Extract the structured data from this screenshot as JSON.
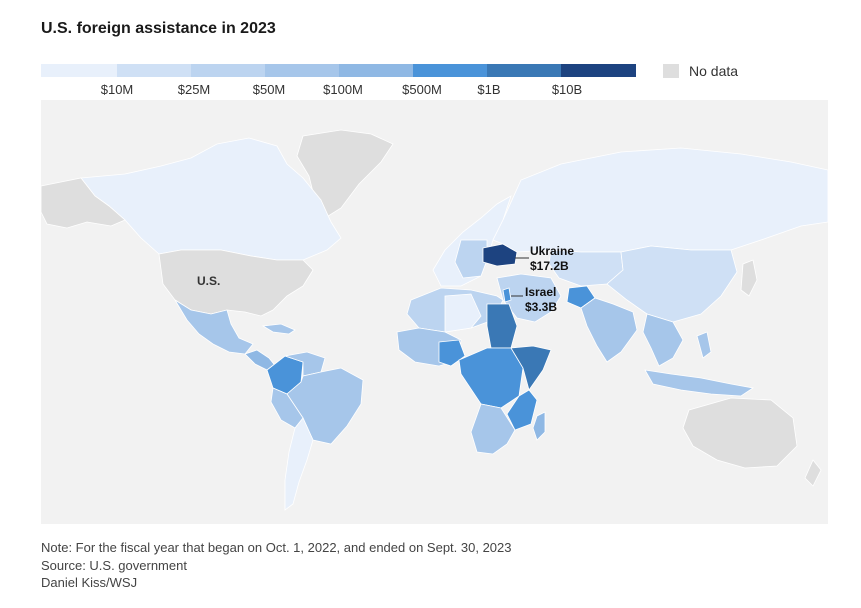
{
  "title": "U.S. foreign assistance in 2023",
  "legend": {
    "colors": [
      "#e8f0fb",
      "#cfe0f5",
      "#bcd4f0",
      "#a6c6ea",
      "#8fb8e4",
      "#4a93d9",
      "#3a78b5",
      "#1d4380"
    ],
    "ticks": [
      "$10M",
      "$25M",
      "$50M",
      "$100M",
      "$500M",
      "$1B",
      "$10B"
    ],
    "no_data_label": "No data",
    "no_data_color": "#dedede"
  },
  "labels": {
    "us": "U.S.",
    "ukraine_name": "Ukraine",
    "ukraine_value": "$17.2B",
    "israel_name": "Israel",
    "israel_value": "$3.3B"
  },
  "notes": {
    "note": "Note: For the fiscal year that began on Oct. 1, 2022, and ended on Sept. 30, 2023",
    "source": "Source: U.S. government",
    "credit": "Daniel Kiss/WSJ"
  }
}
